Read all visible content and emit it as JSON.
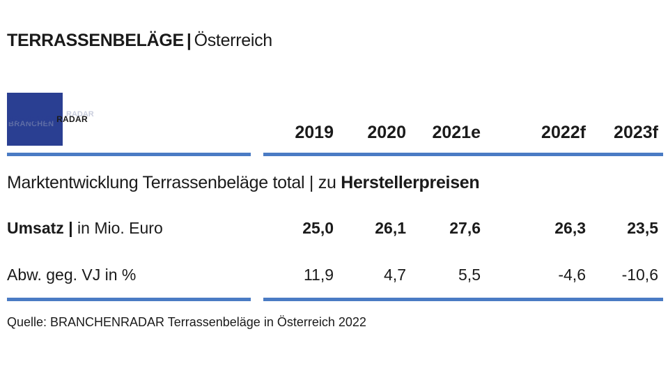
{
  "header": {
    "title_main": "TERRASSENBELÄGE",
    "title_sep": "|",
    "title_region": "Österreich"
  },
  "logo": {
    "part1": "BRANCHEN",
    "part2": "RADAR",
    "ghost1": "BRANCHEN",
    "ghost2": "RADAR",
    "brand_color": "#2a3f92"
  },
  "table": {
    "years": [
      "2019",
      "2020",
      "2021e",
      "2022f",
      "2023f"
    ],
    "subtitle_prefix": "Marktentwicklung Terrassenbeläge total | zu ",
    "subtitle_bold": "Herstellerpreisen",
    "rows": [
      {
        "label_bold": "Umsatz |",
        "label_rest": " in Mio. Euro",
        "values": [
          "25,0",
          "26,1",
          "27,6",
          "26,3",
          "23,5"
        ]
      },
      {
        "label_bold": "",
        "label_rest": "Abw. geg. VJ in %",
        "values": [
          "11,9",
          "4,7",
          "5,5",
          "-4,6",
          "-10,6"
        ]
      }
    ],
    "rule_color": "#4a7bc4"
  },
  "footer": {
    "source": "Quelle: BRANCHENRADAR Terrassenbeläge in Österreich 2022"
  }
}
